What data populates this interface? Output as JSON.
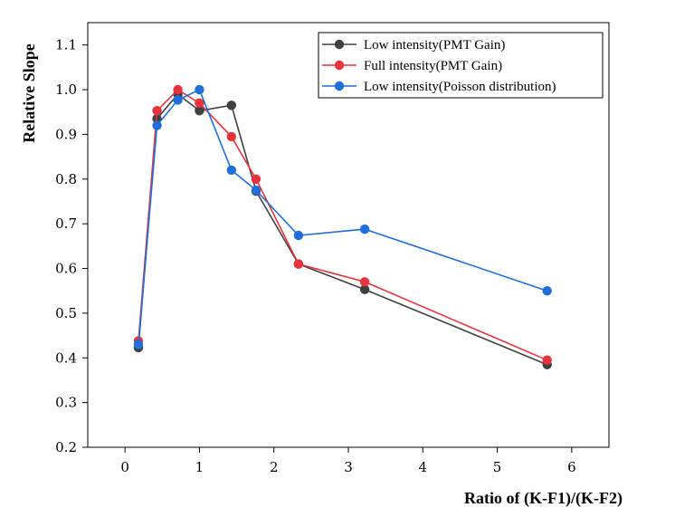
{
  "chart_data": {
    "type": "line",
    "title": "",
    "xlabel": "Ratio of (K-F1)/(K-F2)",
    "ylabel": "Relative Slope",
    "xlim": [
      -0.5,
      6.5
    ],
    "ylim": [
      0.2,
      1.15
    ],
    "xticks": [
      0,
      1,
      2,
      3,
      4,
      5,
      6
    ],
    "yticks": [
      0.2,
      0.3,
      0.4,
      0.5,
      0.6,
      0.7,
      0.8,
      0.9,
      1.0,
      1.1
    ],
    "ytick_labels": [
      "0.2",
      "0.3",
      "0.4",
      "0.5",
      "0.6",
      "0.7",
      "0.8",
      "0.9",
      "1.0",
      "1.1"
    ],
    "grid": false,
    "legend_position": "top-right",
    "series": [
      {
        "name": "Low intensity(PMT Gain)",
        "color": "#404040",
        "x": [
          0.18,
          0.43,
          0.71,
          1.0,
          1.43,
          1.76,
          2.33,
          3.22,
          5.67
        ],
        "y": [
          0.423,
          0.935,
          0.99,
          0.953,
          0.965,
          0.773,
          0.61,
          0.553,
          0.385
        ]
      },
      {
        "name": "Full  intensity(PMT Gain)",
        "color": "#e8323c",
        "x": [
          0.18,
          0.43,
          0.71,
          1.0,
          1.43,
          1.76,
          2.33,
          3.22,
          5.67
        ],
        "y": [
          0.438,
          0.953,
          1.0,
          0.97,
          0.895,
          0.8,
          0.61,
          0.57,
          0.395
        ]
      },
      {
        "name": "Low intensity(Poisson distribution)",
        "color": "#1f6fdb",
        "x": [
          0.18,
          0.43,
          0.71,
          1.0,
          1.43,
          1.76,
          2.33,
          3.22,
          5.67
        ],
        "y": [
          0.43,
          0.92,
          0.977,
          1.0,
          0.82,
          0.775,
          0.674,
          0.688,
          0.55
        ]
      }
    ]
  }
}
